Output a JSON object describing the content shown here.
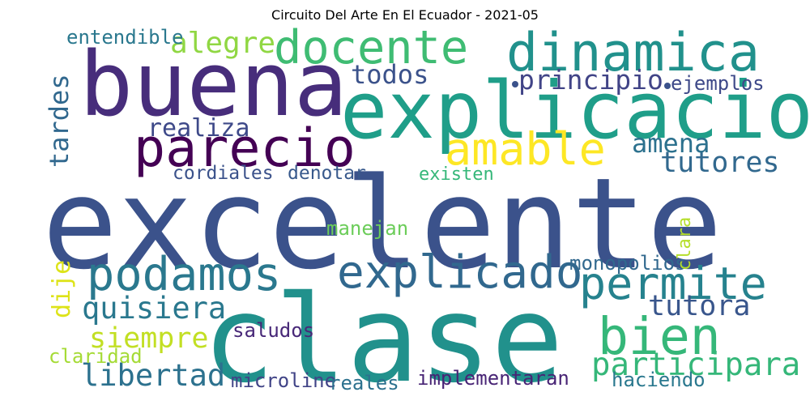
{
  "title": "Circuito Del Arte En El Ecuador - 2021-05",
  "chart_data": {
    "type": "wordcloud",
    "title": "Circuito Del Arte En El Ecuador - 2021-05",
    "words": [
      {
        "text": "excelente",
        "weight": 100,
        "color": "#3b528b"
      },
      {
        "text": "clase",
        "weight": 95,
        "color": "#21918c"
      },
      {
        "text": "buena",
        "weight": 72,
        "color": "#472d7b"
      },
      {
        "text": "explicacion",
        "weight": 64,
        "color": "#1f9e89"
      },
      {
        "text": "dinamica",
        "weight": 43,
        "color": "#21918c"
      },
      {
        "text": "parecio",
        "weight": 43,
        "color": "#440154"
      },
      {
        "text": "bien",
        "weight": 42,
        "color": "#35b779"
      },
      {
        "text": "docente",
        "weight": 38,
        "color": "#3fbc73"
      },
      {
        "text": "podamos",
        "weight": 38,
        "color": "#2a788e"
      },
      {
        "text": "explicado",
        "weight": 37,
        "color": "#31688e"
      },
      {
        "text": "amable",
        "weight": 36,
        "color": "#fde725"
      },
      {
        "text": "permite",
        "weight": 36,
        "color": "#26828e"
      },
      {
        "text": "participara",
        "weight": 26,
        "color": "#35b779"
      },
      {
        "text": "quisiera",
        "weight": 25,
        "color": "#2a788e"
      },
      {
        "text": "libertad",
        "weight": 25,
        "color": "#2c718e"
      },
      {
        "text": "alegre",
        "weight": 24,
        "color": "#90d743"
      },
      {
        "text": "tutora",
        "weight": 24,
        "color": "#39568c"
      },
      {
        "text": "siempre",
        "weight": 24,
        "color": "#c2df23"
      },
      {
        "text": "tutores",
        "weight": 23,
        "color": "#31688e"
      },
      {
        "text": "principio",
        "weight": 22,
        "color": "#414487"
      },
      {
        "text": "todos",
        "weight": 22,
        "color": "#3b528b"
      },
      {
        "text": "amena",
        "weight": 22,
        "color": "#2c718e"
      },
      {
        "text": "tardes",
        "weight": 22,
        "color": "#31688e"
      },
      {
        "text": "realiza",
        "weight": 20,
        "color": "#3e4989"
      },
      {
        "text": "dije",
        "weight": 20,
        "color": "#dde318"
      },
      {
        "text": "haciendo",
        "weight": 16,
        "color": "#2a788e"
      },
      {
        "text": "implementaran",
        "weight": 16,
        "color": "#482475"
      },
      {
        "text": "saludos",
        "weight": 16,
        "color": "#482878"
      },
      {
        "text": "claridad",
        "weight": 16,
        "color": "#a5db36"
      },
      {
        "text": "microline",
        "weight": 16,
        "color": "#414487"
      },
      {
        "text": "reales",
        "weight": 16,
        "color": "#2c718e"
      },
      {
        "text": "manejan",
        "weight": 16,
        "color": "#6ccd5a"
      },
      {
        "text": "monopolios",
        "weight": 16,
        "color": "#31688e"
      },
      {
        "text": "ejemplos",
        "weight": 16,
        "color": "#3e4989"
      },
      {
        "text": "entendible",
        "weight": 16,
        "color": "#2a788e"
      },
      {
        "text": "cordiales",
        "weight": 16,
        "color": "#3b528b"
      },
      {
        "text": "denotar",
        "weight": 16,
        "color": "#38598c"
      },
      {
        "text": "existen",
        "weight": 15,
        "color": "#35b779"
      },
      {
        "text": "clara",
        "weight": 15,
        "color": "#b5de2b"
      }
    ]
  }
}
